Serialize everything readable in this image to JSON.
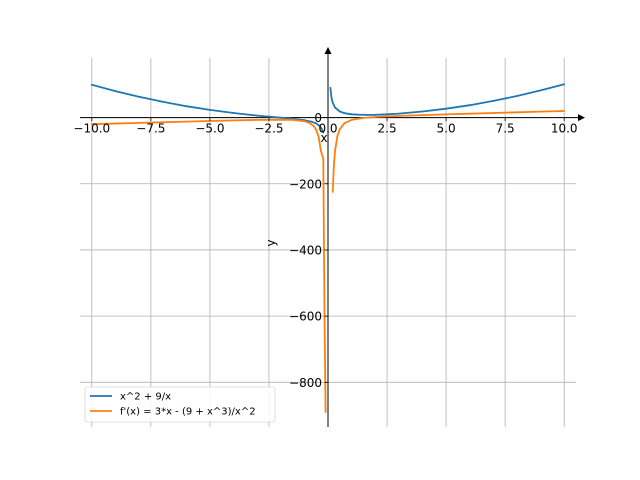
{
  "chart_data": {
    "type": "line",
    "xlabel": "x",
    "ylabel": "y",
    "xlim": [
      -10.5,
      10.5
    ],
    "ylim": [
      -935,
      180
    ],
    "grid": true,
    "legend_position": "lower-left",
    "x_ticks": [
      {
        "value": -10.0,
        "label": "−10.0"
      },
      {
        "value": -7.5,
        "label": "−7.5"
      },
      {
        "value": -5.0,
        "label": "−5.0"
      },
      {
        "value": -2.5,
        "label": "−2.5"
      },
      {
        "value": 0.0,
        "label": "0.0"
      },
      {
        "value": 2.5,
        "label": "2.5"
      },
      {
        "value": 5.0,
        "label": "5.0"
      },
      {
        "value": 7.5,
        "label": "7.5"
      },
      {
        "value": 10.0,
        "label": "10.0"
      }
    ],
    "y_ticks": [
      {
        "value": 0,
        "label": "0"
      },
      {
        "value": -200,
        "label": "−200"
      },
      {
        "value": -400,
        "label": "−400"
      },
      {
        "value": -600,
        "label": "−600"
      },
      {
        "value": -800,
        "label": "−800"
      }
    ],
    "series": [
      {
        "name": "x^2 + 9/x",
        "color": "#1f77b4",
        "x": [
          -10,
          -9,
          -8,
          -7,
          -6,
          -5,
          -4,
          -3,
          -2,
          -1.5,
          -1,
          -0.7,
          -0.5,
          -0.35,
          -0.25,
          -0.2,
          0.1,
          0.15,
          0.2,
          0.3,
          0.5,
          0.7,
          1,
          1.3,
          1.65,
          2,
          2.5,
          3,
          4,
          5,
          6,
          7,
          8,
          9,
          10
        ],
        "y": [
          99.1,
          80,
          62.9,
          47.7,
          34.5,
          23.2,
          13.8,
          6,
          -0.5,
          -3.75,
          -8,
          -12.4,
          -17.75,
          -25.6,
          -36,
          -45,
          90,
          60,
          45,
          30.1,
          18.25,
          13.3,
          10,
          8.6,
          8.2,
          8.5,
          9.85,
          12,
          18.25,
          26.8,
          37.5,
          50.3,
          65.1,
          82,
          100.9
        ]
      },
      {
        "name": "f'(x) = 3*x - (9 + x^3)/x^2",
        "color": "#ff7f0e",
        "x": [
          -10,
          -8,
          -6,
          -4,
          -3,
          -2,
          -1.5,
          -1,
          -0.8,
          -0.6,
          -0.5,
          -0.4,
          -0.3,
          -0.2,
          -0.15,
          -0.1,
          0.2,
          0.25,
          0.3,
          0.4,
          0.5,
          0.7,
          1,
          1.5,
          2,
          2.5,
          3,
          4,
          5,
          6,
          7,
          8,
          9,
          10
        ],
        "y": [
          -20.1,
          -16.1,
          -12.3,
          -8.6,
          -7,
          -6.3,
          -7,
          -11,
          -15.7,
          -26.2,
          -37,
          -57.1,
          -100.6,
          -125,
          -600,
          -890,
          -225,
          -143.5,
          -99.4,
          -55.4,
          -35,
          -17,
          -7,
          -1,
          1.75,
          3.6,
          5,
          7.4,
          9.6,
          11.75,
          13.8,
          15.9,
          17.9,
          19.9
        ]
      }
    ]
  }
}
